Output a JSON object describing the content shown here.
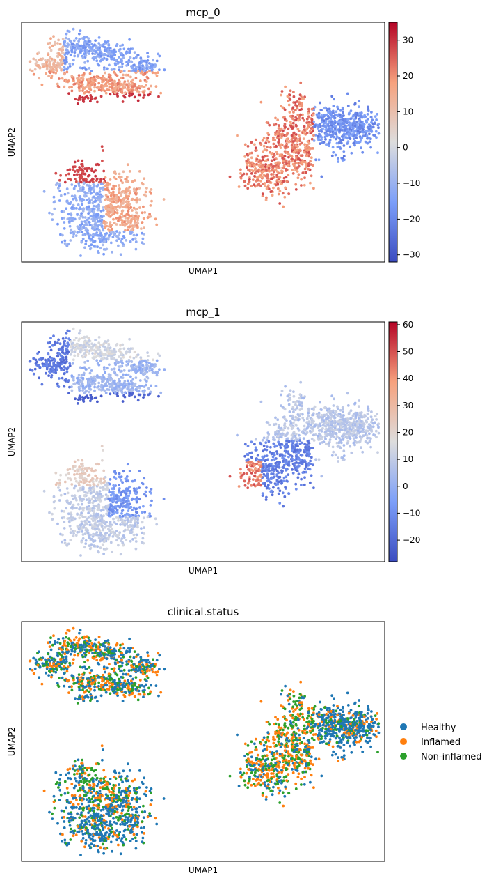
{
  "chart_data": [
    {
      "type": "scatter",
      "title": "mcp_0",
      "xlabel": "UMAP1",
      "ylabel": "UMAP2",
      "colorbar": {
        "colormap": "coolwarm",
        "range": [
          -32,
          35
        ],
        "ticks": [
          30,
          20,
          10,
          0,
          -10,
          -20,
          -30
        ],
        "tick_labels": [
          "30",
          "20",
          "10",
          "0",
          "−10",
          "−20",
          "−30"
        ]
      },
      "clusters": [
        {
          "name": "upper-left",
          "values": [
            "cool",
            "warm",
            "hot"
          ]
        },
        {
          "name": "lower-left",
          "values": [
            "cool",
            "warm"
          ]
        },
        {
          "name": "right",
          "values": [
            "hot",
            "cool"
          ]
        }
      ]
    },
    {
      "type": "scatter",
      "title": "mcp_1",
      "xlabel": "UMAP1",
      "ylabel": "UMAP2",
      "colorbar": {
        "colormap": "coolwarm",
        "range": [
          -28,
          61
        ],
        "ticks": [
          60,
          50,
          40,
          30,
          20,
          10,
          0,
          -10,
          -20
        ],
        "tick_labels": [
          "60",
          "50",
          "40",
          "30",
          "20",
          "10",
          "0",
          "−10",
          "−20"
        ]
      }
    },
    {
      "type": "scatter",
      "title": "clinical.status",
      "xlabel": "UMAP1",
      "ylabel": "UMAP2",
      "legend_position": "right",
      "series": [
        {
          "name": "Healthy",
          "color": "#1f77b4"
        },
        {
          "name": "Inflamed",
          "color": "#ff7f0e"
        },
        {
          "name": "Non-inflamed",
          "color": "#2ca02c"
        }
      ]
    }
  ]
}
